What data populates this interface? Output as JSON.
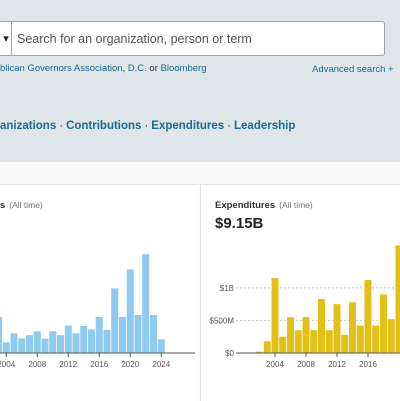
{
  "search": {
    "placeholder": "Search for an organization, person or term",
    "examples_prefix": "blican Governors Association",
    "examples_sep1": ", ",
    "examples_link2": "D.C.",
    "examples_sep2": " or ",
    "examples_link3": "Bloomberg",
    "advanced": "Advanced search +"
  },
  "nav": {
    "items": [
      "anizations",
      "Contributions",
      "Expenditures",
      "Leadership"
    ],
    "separator": "·"
  },
  "contributions_card": {
    "title": "s",
    "period": "(All time)"
  },
  "expenditures_card": {
    "title": "Expenditures",
    "period": "(All time)",
    "total": "$9.15B"
  },
  "colors": {
    "contributions": "#8ecbee",
    "expenditures": "#e2c018",
    "link": "#1b6a8f"
  },
  "chart_data": [
    {
      "type": "bar",
      "title": "Contributions",
      "x": [
        2003,
        2004,
        2005,
        2006,
        2007,
        2008,
        2009,
        2010,
        2011,
        2012,
        2013,
        2014,
        2015,
        2016,
        2017,
        2018,
        2019,
        2020,
        2021,
        2022,
        2023,
        2024
      ],
      "values": [
        0.95,
        0.28,
        0.52,
        0.38,
        0.47,
        0.57,
        0.38,
        0.57,
        0.47,
        0.72,
        0.52,
        0.71,
        0.62,
        0.95,
        0.61,
        1.7,
        0.95,
        2.2,
        1.0,
        2.6,
        1.0,
        0.36
      ],
      "xticks": [
        2004,
        2008,
        2012,
        2016,
        2020,
        2024
      ],
      "ylim": [
        0,
        3.0
      ]
    },
    {
      "type": "bar",
      "title": "Expenditures",
      "x": [
        2002,
        2003,
        2004,
        2005,
        2006,
        2007,
        2008,
        2009,
        2010,
        2011,
        2012,
        2013,
        2014,
        2015,
        2016,
        2017,
        2018,
        2019,
        2020
      ],
      "values": [
        0.02,
        0.18,
        1.15,
        0.25,
        0.55,
        0.35,
        0.55,
        0.35,
        0.83,
        0.35,
        0.75,
        0.28,
        0.78,
        0.42,
        1.12,
        0.42,
        0.9,
        0.52,
        1.65
      ],
      "yticks": [
        {
          "v": 0,
          "label": "$0"
        },
        {
          "v": 0.5,
          "label": "$500M"
        },
        {
          "v": 1.0,
          "label": "$1B"
        }
      ],
      "xticks": [
        2004,
        2008,
        2012,
        2016
      ],
      "ylim": [
        0,
        1.75
      ]
    }
  ]
}
